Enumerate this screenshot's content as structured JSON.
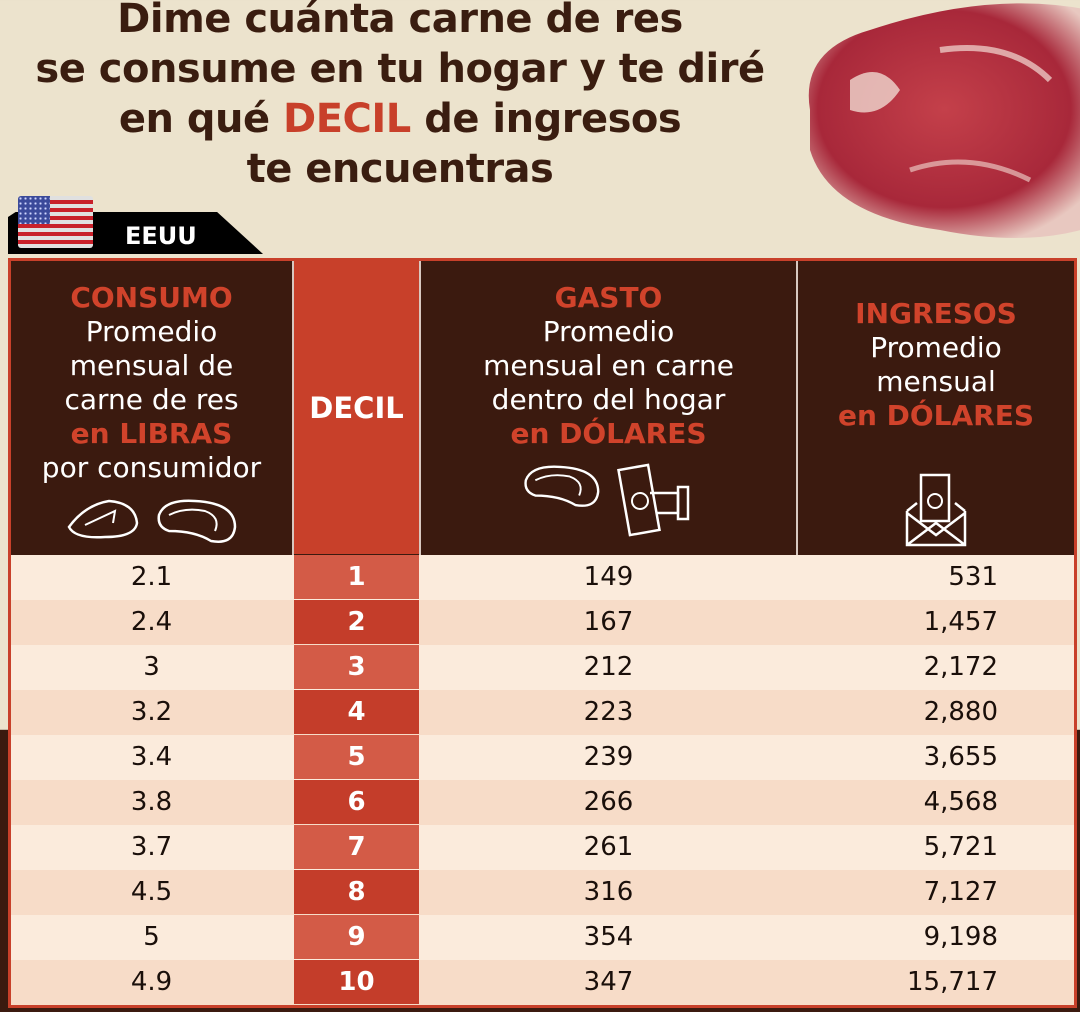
{
  "title": {
    "line1": "Dime cuánta carne de res",
    "line2": "se consume en tu hogar y te diré",
    "line3_pre": "en qué ",
    "line3_hl": "DECIL",
    "line3_post": " de ingresos",
    "line4": "te encuentras"
  },
  "country": {
    "label": "EEUU",
    "flag_icon": "us-flag"
  },
  "colors": {
    "accent": "#c8402a",
    "dark": "#3b1a0f",
    "background": "#ece3cd",
    "row_light": "#fbebdc",
    "row_alt": "#f7dcc8"
  },
  "headers": {
    "consumo": {
      "title": "CONSUMO",
      "l1": "Promedio",
      "l2": "mensual de",
      "l3": "carne de res",
      "unit": "en LIBRAS",
      "l4": "por consumidor"
    },
    "decil": {
      "title": "DECIL"
    },
    "gasto": {
      "title": "GASTO",
      "l1": "Promedio",
      "l2": "mensual en carne",
      "l3": "dentro del hogar",
      "unit": "en DÓLARES"
    },
    "ingresos": {
      "title": "INGRESOS",
      "l1": "Promedio",
      "l2": "mensual",
      "unit": "en DÓLARES"
    }
  },
  "chart_data": {
    "type": "table",
    "columns": [
      "CONSUMO",
      "DECIL",
      "GASTO",
      "INGRESOS"
    ],
    "rows": [
      [
        "2.1",
        "1",
        "149",
        "531"
      ],
      [
        "2.4",
        "2",
        "167",
        "1,457"
      ],
      [
        "3",
        "3",
        "212",
        "2,172"
      ],
      [
        "3.2",
        "4",
        "223",
        "2,880"
      ],
      [
        "3.4",
        "5",
        "239",
        "3,655"
      ],
      [
        "3.8",
        "6",
        "266",
        "4,568"
      ],
      [
        "3.7",
        "7",
        "261",
        "5,721"
      ],
      [
        "4.5",
        "8",
        "316",
        "7,127"
      ],
      [
        "5",
        "9",
        "354",
        "9,198"
      ],
      [
        "4.9",
        "10",
        "347",
        "15,717"
      ]
    ]
  }
}
